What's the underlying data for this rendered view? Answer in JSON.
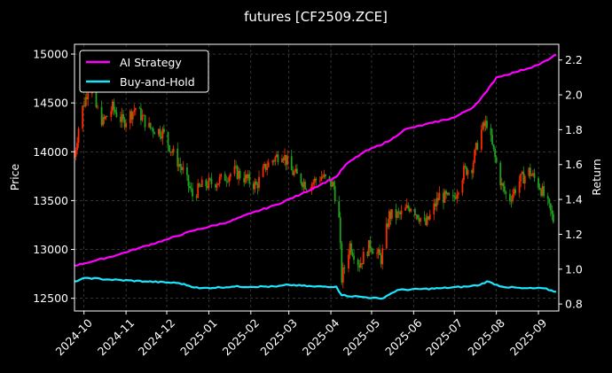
{
  "chart_data": {
    "type": "line",
    "title": "futures [CF2509.ZCE]",
    "xlabel": "",
    "ylabel": "Price",
    "y2label": "Return",
    "x_ticks": [
      "2024-10",
      "2024-11",
      "2024-12",
      "2025-01",
      "2025-02",
      "2025-03",
      "2025-04",
      "2025-05",
      "2025-06",
      "2025-07",
      "2025-08",
      "2025-09"
    ],
    "ylim": [
      12370,
      15100
    ],
    "y_ticks": [
      12500,
      13000,
      13500,
      14000,
      14500,
      15000
    ],
    "y2lim": [
      0.76,
      2.29
    ],
    "y2_ticks": [
      "0.8",
      "1.0",
      "1.2",
      "1.4",
      "1.6",
      "1.8",
      "2.0",
      "2.2"
    ],
    "grid": true,
    "legend_position": "top-left",
    "colors": {
      "up": "#ff2a00",
      "down": "#1fa01f",
      "ai": "#ff00ff",
      "bh": "#19e6ff",
      "background": "#000000"
    },
    "price_keypoints": [
      [
        "2024-09-24",
        13950
      ],
      [
        "2024-09-28",
        14350
      ],
      [
        "2024-10-03",
        14600
      ],
      [
        "2024-10-07",
        14800
      ],
      [
        "2024-10-10",
        14450
      ],
      [
        "2024-10-15",
        14300
      ],
      [
        "2024-10-22",
        14450
      ],
      [
        "2024-10-30",
        14300
      ],
      [
        "2024-11-08",
        14450
      ],
      [
        "2024-11-18",
        14250
      ],
      [
        "2024-11-28",
        14200
      ],
      [
        "2024-12-05",
        14000
      ],
      [
        "2024-12-13",
        13800
      ],
      [
        "2024-12-20",
        13550
      ],
      [
        "2024-12-27",
        13650
      ],
      [
        "2025-01-08",
        13700
      ],
      [
        "2025-01-20",
        13800
      ],
      [
        "2025-02-05",
        13650
      ],
      [
        "2025-02-12",
        13850
      ],
      [
        "2025-02-24",
        14000
      ],
      [
        "2025-03-03",
        13800
      ],
      [
        "2025-03-15",
        13650
      ],
      [
        "2025-03-25",
        13750
      ],
      [
        "2025-04-03",
        13650
      ],
      [
        "2025-04-07",
        13300
      ],
      [
        "2025-04-09",
        12700
      ],
      [
        "2025-04-15",
        13050
      ],
      [
        "2025-04-22",
        12850
      ],
      [
        "2025-04-30",
        13050
      ],
      [
        "2025-05-08",
        12900
      ],
      [
        "2025-05-14",
        13350
      ],
      [
        "2025-05-22",
        13350
      ],
      [
        "2025-05-30",
        13450
      ],
      [
        "2025-06-10",
        13250
      ],
      [
        "2025-06-20",
        13550
      ],
      [
        "2025-06-30",
        13500
      ],
      [
        "2025-07-08",
        13800
      ],
      [
        "2025-07-14",
        13850
      ],
      [
        "2025-07-20",
        14200
      ],
      [
        "2025-07-25",
        14300
      ],
      [
        "2025-07-29",
        14050
      ],
      [
        "2025-08-05",
        13650
      ],
      [
        "2025-08-10",
        13500
      ],
      [
        "2025-08-18",
        13700
      ],
      [
        "2025-08-25",
        13800
      ],
      [
        "2025-09-02",
        13650
      ],
      [
        "2025-09-08",
        13450
      ],
      [
        "2025-09-12",
        13300
      ]
    ],
    "series": [
      {
        "name": "AI Strategy",
        "points": [
          [
            "2024-09-24",
            1.02
          ],
          [
            "2024-10-10",
            1.05
          ],
          [
            "2024-10-25",
            1.08
          ],
          [
            "2024-11-10",
            1.12
          ],
          [
            "2024-12-01",
            1.17
          ],
          [
            "2024-12-20",
            1.22
          ],
          [
            "2025-01-15",
            1.27
          ],
          [
            "2025-02-01",
            1.32
          ],
          [
            "2025-02-20",
            1.37
          ],
          [
            "2025-03-10",
            1.43
          ],
          [
            "2025-04-05",
            1.53
          ],
          [
            "2025-04-12",
            1.6
          ],
          [
            "2025-04-25",
            1.67
          ],
          [
            "2025-05-15",
            1.74
          ],
          [
            "2025-05-25",
            1.8
          ],
          [
            "2025-06-15",
            1.84
          ],
          [
            "2025-07-01",
            1.87
          ],
          [
            "2025-07-15",
            1.93
          ],
          [
            "2025-07-25",
            2.02
          ],
          [
            "2025-08-01",
            2.1
          ],
          [
            "2025-08-15",
            2.13
          ],
          [
            "2025-08-31",
            2.17
          ],
          [
            "2025-09-08",
            2.2
          ],
          [
            "2025-09-14",
            2.23
          ]
        ]
      },
      {
        "name": "Buy-and-Hold",
        "points": [
          [
            "2024-09-24",
            0.93
          ],
          [
            "2024-10-03",
            0.95
          ],
          [
            "2024-10-20",
            0.94
          ],
          [
            "2024-11-15",
            0.93
          ],
          [
            "2024-12-10",
            0.92
          ],
          [
            "2024-12-25",
            0.89
          ],
          [
            "2025-01-20",
            0.9
          ],
          [
            "2025-02-20",
            0.9
          ],
          [
            "2025-03-01",
            0.91
          ],
          [
            "2025-03-20",
            0.9
          ],
          [
            "2025-04-05",
            0.9
          ],
          [
            "2025-04-09",
            0.85
          ],
          [
            "2025-04-25",
            0.84
          ],
          [
            "2025-05-08",
            0.83
          ],
          [
            "2025-05-20",
            0.88
          ],
          [
            "2025-06-20",
            0.89
          ],
          [
            "2025-07-10",
            0.9
          ],
          [
            "2025-07-20",
            0.91
          ],
          [
            "2025-07-25",
            0.93
          ],
          [
            "2025-08-05",
            0.9
          ],
          [
            "2025-08-20",
            0.89
          ],
          [
            "2025-09-05",
            0.89
          ],
          [
            "2025-09-14",
            0.87
          ]
        ]
      }
    ]
  }
}
